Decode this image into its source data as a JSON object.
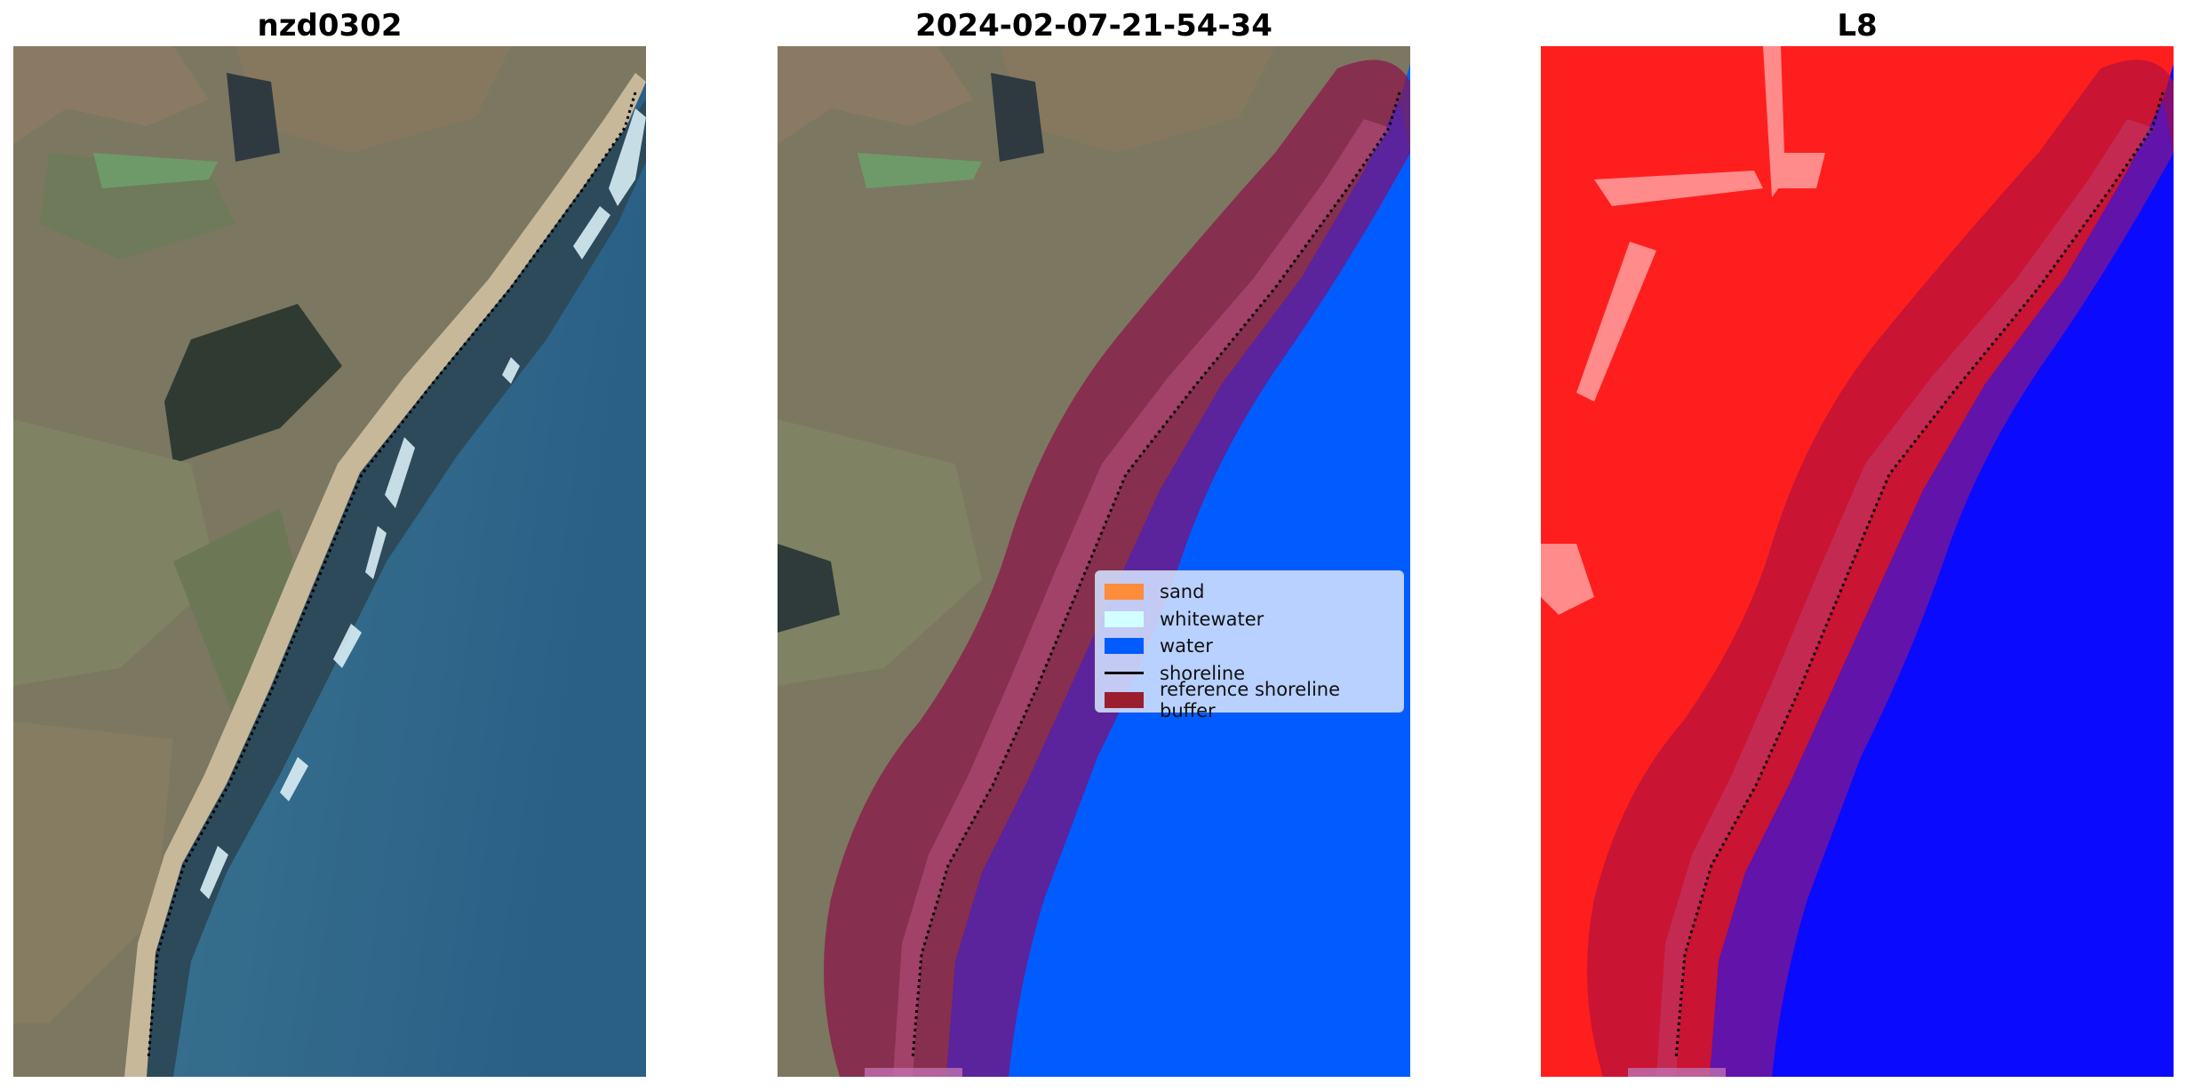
{
  "panels": [
    {
      "title": "nzd0302"
    },
    {
      "title": "2024-02-07-21-54-34"
    },
    {
      "title": "L8"
    }
  ],
  "legend": {
    "items": [
      {
        "label": "sand",
        "color": "#ff8c3a",
        "kind": "patch"
      },
      {
        "label": "whitewater",
        "color": "#d2ffff",
        "kind": "patch"
      },
      {
        "label": "water",
        "color": "#005cff",
        "kind": "patch"
      },
      {
        "label": "shoreline",
        "color": "#000000",
        "kind": "line"
      },
      {
        "label": "reference shoreline buffer",
        "color": "#9a1e2e",
        "kind": "patch"
      }
    ]
  },
  "colors": {
    "land": "#7d7a62",
    "sea": "#3c6e8c",
    "water_class": "#005cff",
    "buffer": "#8c1446",
    "l8_land": "#ff1e1e",
    "l8_water": "#0a0aff"
  }
}
